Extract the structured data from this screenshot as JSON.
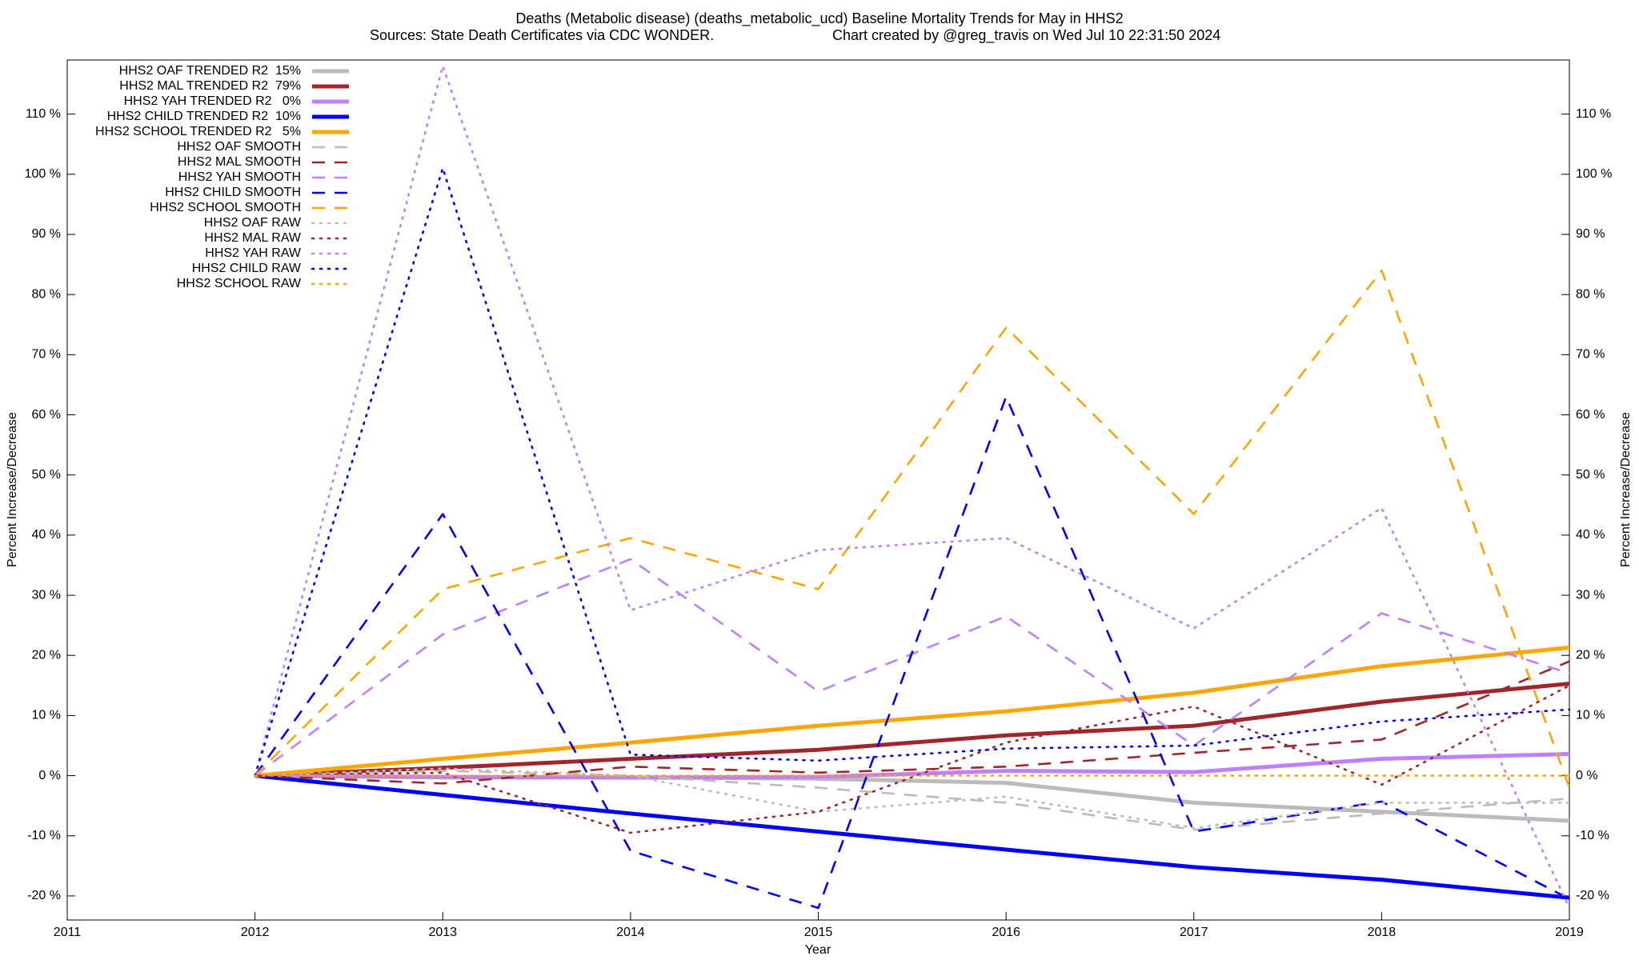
{
  "chart_data": {
    "type": "line",
    "title": "Deaths (Metabolic disease) (deaths_metabolic_ucd)  Baseline Mortality Trends for May in HHS2",
    "subtitle": "Sources: State Death Certificates via CDC WONDER.",
    "credit": "Chart created by @greg_travis on Wed Jul 10 22:31:50 2024",
    "xlabel": "Year",
    "ylabel": "Percent Increase/Decrease",
    "y2label": "Percent Increase/Decrease",
    "x": [
      2012,
      2013,
      2014,
      2015,
      2016,
      2017,
      2018,
      2019
    ],
    "xlim": [
      2011,
      2019
    ],
    "xticks": [
      2011,
      2012,
      2013,
      2014,
      2015,
      2016,
      2017,
      2018,
      2019
    ],
    "ylim": [
      -24,
      119
    ],
    "yticks": [
      {
        "value": -20,
        "label": "-20 %"
      },
      {
        "value": -10,
        "label": "-10 %"
      },
      {
        "value": 0,
        "label": "0 %"
      },
      {
        "value": 10,
        "label": "10 %"
      },
      {
        "value": 20,
        "label": "20 %"
      },
      {
        "value": 30,
        "label": "30 %"
      },
      {
        "value": 40,
        "label": "40 %"
      },
      {
        "value": 50,
        "label": "50 %"
      },
      {
        "value": 60,
        "label": "60 %"
      },
      {
        "value": 70,
        "label": "70 %"
      },
      {
        "value": 80,
        "label": "80 %"
      },
      {
        "value": 90,
        "label": "90 %"
      },
      {
        "value": 100,
        "label": "100 %"
      },
      {
        "value": 110,
        "label": "110 %"
      }
    ],
    "y2lim": [
      -24,
      119
    ],
    "y2ticks": [
      {
        "value": -20,
        "label": "-20 %"
      },
      {
        "value": -10,
        "label": "-10 %"
      },
      {
        "value": 0,
        "label": "0 %"
      },
      {
        "value": 10,
        "label": "10 %"
      },
      {
        "value": 20,
        "label": "20 %"
      },
      {
        "value": 30,
        "label": "30 %"
      },
      {
        "value": 40,
        "label": "40 %"
      },
      {
        "value": 50,
        "label": "50 %"
      },
      {
        "value": 60,
        "label": "60 %"
      },
      {
        "value": 70,
        "label": "70 %"
      },
      {
        "value": 80,
        "label": "80 %"
      },
      {
        "value": 90,
        "label": "90 %"
      },
      {
        "value": 100,
        "label": "100 %"
      },
      {
        "value": 110,
        "label": "110 %"
      }
    ],
    "legend": "top-left",
    "series": [
      {
        "name": "HHS2 OAF TRENDED R2  15%",
        "color": "#bbbbbb",
        "style": "solid",
        "values": [
          0,
          -0.3,
          -0.3,
          -0.5,
          -1.2,
          -4.5,
          -6,
          -7.5
        ]
      },
      {
        "name": "HHS2 MAL TRENDED R2  79%",
        "color": "#a1262b",
        "style": "solid",
        "values": [
          0,
          1.3,
          2.8,
          4.3,
          6.7,
          8.3,
          12.3,
          15.3
        ]
      },
      {
        "name": "HHS2 YAH TRENDED R2   0%",
        "color": "#bf80ff",
        "style": "solid",
        "values": [
          0,
          -0.2,
          -0.3,
          -0.2,
          0.8,
          0.6,
          2.8,
          3.6
        ]
      },
      {
        "name": "HHS2 CHILD TRENDED R2  10%",
        "color": "#0000ff",
        "style": "solid",
        "values": [
          0,
          -3.2,
          -6.3,
          -9.3,
          -12.3,
          -15.2,
          -17.3,
          -20.3
        ]
      },
      {
        "name": "HHS2 SCHOOL TRENDED R2   5%",
        "color": "#ffa500",
        "style": "solid",
        "values": [
          0,
          2.8,
          5.5,
          8.3,
          10.7,
          13.8,
          18.2,
          21.3
        ]
      },
      {
        "name": "HHS2 OAF SMOOTH",
        "color": "#bbbbbb",
        "style": "dashed",
        "values": [
          0,
          0.8,
          0,
          -2,
          -4.5,
          -9,
          -6.3,
          -3.8
        ]
      },
      {
        "name": "HHS2 MAL SMOOTH",
        "color": "#a1262b",
        "style": "dashed",
        "values": [
          0,
          -1.3,
          1.5,
          0.5,
          1.5,
          3.8,
          6,
          19
        ]
      },
      {
        "name": "HHS2 YAH SMOOTH",
        "color": "#bf80ff",
        "style": "dashed",
        "values": [
          0,
          23.5,
          36,
          14,
          26.5,
          5,
          27,
          17
        ]
      },
      {
        "name": "HHS2 CHILD SMOOTH",
        "color": "#0000ff",
        "style": "dashed",
        "values": [
          0,
          43.5,
          -12.5,
          -22,
          63,
          -9.3,
          -4.3,
          -20.5
        ]
      },
      {
        "name": "HHS2 SCHOOL SMOOTH",
        "color": "#ffa500",
        "style": "dashed",
        "values": [
          0,
          31,
          39.5,
          31,
          74.5,
          43.5,
          84,
          -2
        ]
      },
      {
        "name": "HHS2 OAF RAW",
        "color": "#bbbbbb",
        "style": "dotted",
        "values": [
          0,
          1.2,
          0,
          -6,
          -3.5,
          -8.7,
          -4.5,
          -4.5
        ]
      },
      {
        "name": "HHS2 MAL RAW",
        "color": "#a1262b",
        "style": "dotted",
        "values": [
          0,
          0.5,
          -9.5,
          -6,
          5.5,
          11.5,
          -1.5,
          15
        ]
      },
      {
        "name": "HHS2 YAH RAW",
        "color": "#bf80ff",
        "style": "dotted",
        "values": [
          0,
          118,
          27.5,
          37.5,
          39.5,
          24.5,
          44.5,
          -22
        ]
      },
      {
        "name": "HHS2 CHILD RAW",
        "color": "#0000ff",
        "style": "dotted",
        "values": [
          0,
          101,
          3.5,
          2.5,
          4.5,
          5,
          9,
          11
        ]
      },
      {
        "name": "HHS2 SCHOOL RAW",
        "color": "#ffa500",
        "style": "dotted",
        "values": [
          0,
          0,
          0,
          0,
          0,
          0,
          0,
          0
        ]
      }
    ]
  }
}
